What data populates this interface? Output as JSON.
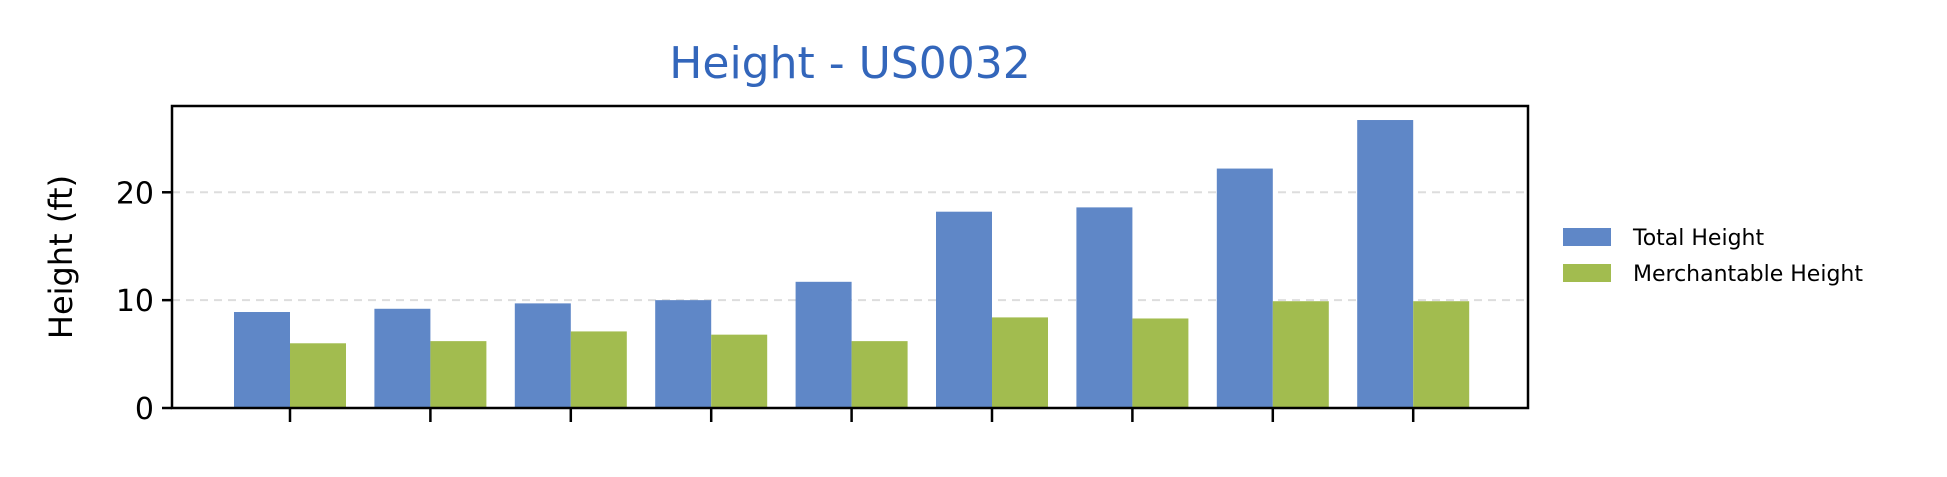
{
  "chart_data": {
    "type": "bar",
    "title": "Height - US0032",
    "xlabel": "",
    "ylabel": "Height (ft)",
    "ylim": [
      0,
      28
    ],
    "yticks": [
      0,
      10,
      20
    ],
    "grid": "y-dashed",
    "legend_position": "right",
    "categories": [
      "",
      "",
      "",
      "",
      "",
      "",
      "",
      "",
      ""
    ],
    "series": [
      {
        "name": "Total Height",
        "color": "#5f87c7",
        "values": [
          8.9,
          9.2,
          9.7,
          10.0,
          11.7,
          18.2,
          18.6,
          22.2,
          26.7
        ]
      },
      {
        "name": "Merchantable Height",
        "color": "#a2bc4f",
        "values": [
          6.0,
          6.2,
          7.1,
          6.8,
          6.2,
          8.4,
          8.3,
          9.9,
          9.9
        ]
      }
    ],
    "colors": {
      "title": "#3366bb",
      "grid": "#dddddd",
      "axis": "#000000"
    }
  }
}
